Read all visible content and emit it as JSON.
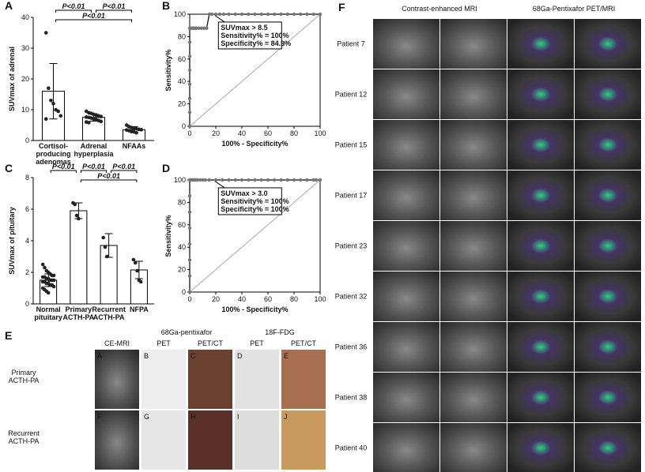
{
  "chart_data": [
    {
      "type": "bar",
      "panel_label": "A",
      "ylabel": "SUVmax of adrenal",
      "categories": [
        "Cortisol-\nproducing\nadenomas",
        "Adrenal\nhyperplasia",
        "NFAAs"
      ],
      "values": [
        16,
        7.5,
        3.5
      ],
      "errors": [
        9,
        1.2,
        1
      ],
      "points": [
        [
          35,
          17,
          13,
          12,
          10,
          9.5,
          8,
          7
        ],
        [
          9.5,
          9,
          8.8,
          8.5,
          8.2,
          8,
          7.8,
          7.6,
          7.5,
          7.3,
          7,
          6.8,
          6.5,
          6.2,
          6,
          5.8
        ],
        [
          5,
          4.5,
          4.2,
          4,
          3.8,
          3.6,
          3.5,
          3.4,
          3.2,
          3,
          2.8,
          2.5
        ]
      ],
      "annotations": [
        "P<0.01",
        "P<0.01",
        "P<0.01"
      ],
      "ylim": [
        0,
        40
      ],
      "yticks": [
        0,
        10,
        20,
        30,
        40
      ],
      "color": "#ffffff"
    },
    {
      "type": "line",
      "panel_label": "B",
      "xlabel": "100% - Specificity%",
      "ylabel": "Sensitivity%",
      "x": [
        0,
        0,
        0,
        0,
        0,
        0,
        0,
        0,
        1,
        2,
        3,
        4,
        5,
        7,
        9,
        11,
        13,
        15,
        17,
        20,
        23,
        26,
        30,
        35,
        40,
        45,
        50,
        55,
        60,
        65,
        70,
        75,
        80,
        85,
        90,
        95,
        100
      ],
      "values": [
        0,
        12.5,
        25,
        37.5,
        50,
        62.5,
        75,
        87.5,
        87.5,
        87.5,
        87.5,
        87.5,
        87.5,
        87.5,
        87.5,
        87.5,
        87.5,
        100,
        100,
        100,
        100,
        100,
        100,
        100,
        100,
        100,
        100,
        100,
        100,
        100,
        100,
        100,
        100,
        100,
        100,
        100,
        100
      ],
      "annotation": [
        "SUVmax > 8.5",
        "Sensitivity% = 100%",
        "Specificity% = 84.9%"
      ],
      "xlim": [
        0,
        100
      ],
      "ylim": [
        0,
        100
      ],
      "xticks": [
        0,
        20,
        40,
        60,
        80,
        100
      ],
      "yticks": [
        0,
        20,
        40,
        60,
        80,
        100
      ],
      "color": "#777777"
    },
    {
      "type": "bar",
      "panel_label": "C",
      "ylabel": "SUVmax of pituitary",
      "categories": [
        "Normal\npituitary",
        "Primary\nACTH-PA",
        "Recurrent\nACTH-PA",
        "NFPA"
      ],
      "values": [
        1.5,
        5.9,
        3.7,
        2.15
      ],
      "errors": [
        0.4,
        0.5,
        0.75,
        0.55
      ],
      "points": [
        [
          2.5,
          2.3,
          2.1,
          2,
          1.9,
          1.8,
          1.8,
          1.7,
          1.7,
          1.6,
          1.6,
          1.5,
          1.5,
          1.5,
          1.4,
          1.4,
          1.3,
          1.3,
          1.2,
          1.2,
          1.1,
          1.0,
          0.9,
          0.8,
          0.7
        ],
        [
          6.4,
          6.3,
          5.6,
          5.4
        ],
        [
          4.2,
          3.6,
          3.0
        ],
        [
          2.8,
          2.6,
          2.1,
          1.5,
          1.4
        ]
      ],
      "annotations": [
        "P<0.01",
        "P<0.01",
        "P<0.01",
        "P<0.01"
      ],
      "ylim": [
        0,
        8
      ],
      "yticks": [
        0,
        2,
        4,
        6,
        8
      ],
      "color": "#ffffff"
    },
    {
      "type": "line",
      "panel_label": "D",
      "xlabel": "100% - Specificity%",
      "ylabel": "Sensitivity%",
      "x": [
        0,
        0,
        0,
        0,
        0,
        0,
        0,
        0,
        1,
        2,
        3,
        4,
        5,
        6,
        8,
        10,
        12,
        15,
        20,
        25,
        30,
        35,
        40,
        45,
        50,
        55,
        60,
        65,
        70,
        75,
        80,
        85,
        90,
        95,
        97,
        100
      ],
      "values": [
        0,
        14.3,
        28.6,
        42.9,
        57.1,
        71.4,
        85.7,
        100,
        100,
        100,
        100,
        100,
        100,
        100,
        100,
        100,
        100,
        100,
        100,
        100,
        100,
        100,
        100,
        100,
        100,
        100,
        100,
        100,
        100,
        100,
        100,
        100,
        100,
        100,
        100,
        100
      ],
      "annotation": [
        "SUVmax > 3.0",
        "Sensitivity% = 100%",
        "Specificity% = 100%"
      ],
      "xlim": [
        0,
        100
      ],
      "ylim": [
        0,
        100
      ],
      "xticks": [
        0,
        20,
        40,
        60,
        80,
        100
      ],
      "yticks": [
        0,
        20,
        40,
        60,
        80,
        100
      ],
      "color": "#777777"
    }
  ],
  "panel_e": {
    "label": "E",
    "group_1": "68Ga-pentixafor",
    "group_2": "18F-FDG",
    "columns": [
      "CE-MRI",
      "PET",
      "PET/CT",
      "PET",
      "PET/CT"
    ],
    "rows": [
      "Primary\nACTH-PA",
      "Recurrent\nACTH-PA"
    ],
    "cell_letters": [
      [
        "A",
        "B",
        "C",
        "D",
        "E"
      ],
      [
        "F",
        "G",
        "H",
        "I",
        "J"
      ]
    ]
  },
  "panel_f": {
    "label": "F",
    "header_1": "Contrast-enhanced MRI",
    "header_2": "68Ga-Pentixafor PET/MRI",
    "patients": [
      "Patient 7",
      "Patient 12",
      "Patient 15",
      "Patient 17",
      "Patient 23",
      "Patient 32",
      "Patient 36",
      "Patient 38",
      "Patient 40"
    ]
  }
}
